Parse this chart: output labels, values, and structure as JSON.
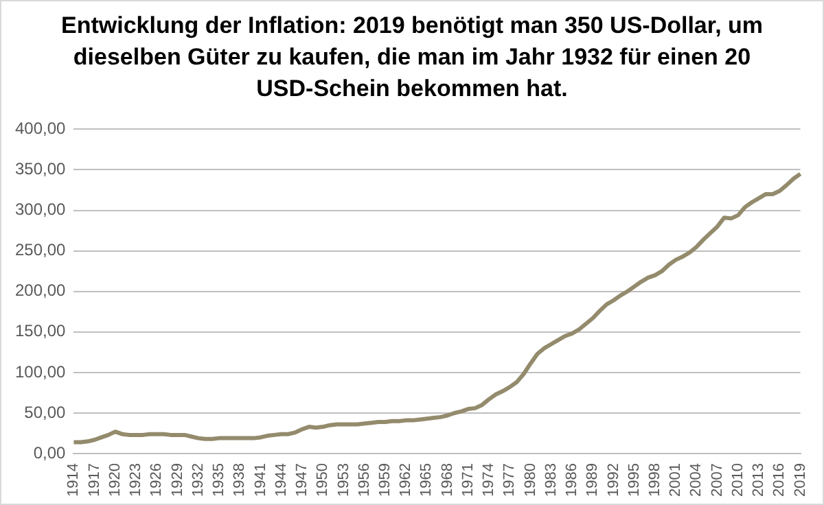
{
  "chart_data": {
    "type": "line",
    "title": "Entwicklung der Inflation: 2019 benötigt man 350 US-Dollar, um dieselben Güter zu kaufen, die man im Jahr 1932 für einen 20 USD-Schein bekommen hat.",
    "categories": [
      "1914",
      null,
      null,
      "1917",
      null,
      null,
      "1920",
      null,
      null,
      "1923",
      null,
      null,
      "1926",
      null,
      null,
      "1929",
      null,
      null,
      "1932",
      null,
      null,
      "1935",
      null,
      null,
      "1938",
      null,
      null,
      "1941",
      null,
      null,
      "1944",
      null,
      null,
      "1947",
      null,
      null,
      "1950",
      null,
      null,
      "1953",
      null,
      null,
      "1956",
      null,
      null,
      "1959",
      null,
      null,
      "1962",
      null,
      null,
      "1965",
      null,
      null,
      "1968",
      null,
      null,
      "1971",
      null,
      null,
      "1974",
      null,
      null,
      "1977",
      null,
      null,
      "1980",
      null,
      null,
      "1983",
      null,
      null,
      "1986",
      null,
      null,
      "1989",
      null,
      null,
      "1992",
      null,
      null,
      "1995",
      null,
      null,
      "1998",
      null,
      null,
      "2001",
      null,
      null,
      "2004",
      null,
      null,
      "2007",
      null,
      null,
      "2010",
      null,
      null,
      "2013",
      null,
      null,
      "2016",
      null,
      null,
      "2019"
    ],
    "series": [
      {
        "color": "#938b6c",
        "values": [
          14,
          14,
          15,
          17,
          20,
          23,
          27,
          24,
          23,
          23,
          23,
          24,
          24,
          24,
          23,
          23,
          23,
          21,
          19,
          18,
          18,
          19,
          19,
          19,
          19,
          19,
          19,
          20,
          22,
          23,
          24,
          24,
          26,
          30,
          33,
          32,
          33,
          35,
          36,
          36,
          36,
          36,
          37,
          38,
          39,
          39,
          40,
          40,
          41,
          41,
          42,
          43,
          44,
          45,
          47,
          50,
          52,
          55,
          56,
          60,
          67,
          73,
          77,
          82,
          88,
          98,
          111,
          123,
          130,
          135,
          140,
          145,
          148,
          153,
          160,
          167,
          176,
          184,
          189,
          195,
          200,
          206,
          212,
          217,
          220,
          225,
          233,
          239,
          243,
          248,
          255,
          264,
          272,
          280,
          291,
          290,
          294,
          304,
          310,
          315,
          320,
          320,
          324,
          331,
          339,
          345
        ]
      }
    ],
    "ylim": [
      0,
      400
    ],
    "yticks": [
      {
        "value": 0,
        "label": "0,00"
      },
      {
        "value": 50,
        "label": "50,00"
      },
      {
        "value": 100,
        "label": "100,00"
      },
      {
        "value": 150,
        "label": "150,00"
      },
      {
        "value": 200,
        "label": "200,00"
      },
      {
        "value": 250,
        "label": "250,00"
      },
      {
        "value": 300,
        "label": "300,00"
      },
      {
        "value": 350,
        "label": "350,00"
      },
      {
        "value": 400,
        "label": "400,00"
      }
    ],
    "grid": "y",
    "legend": false,
    "marker": "none",
    "line_style": "solid"
  }
}
